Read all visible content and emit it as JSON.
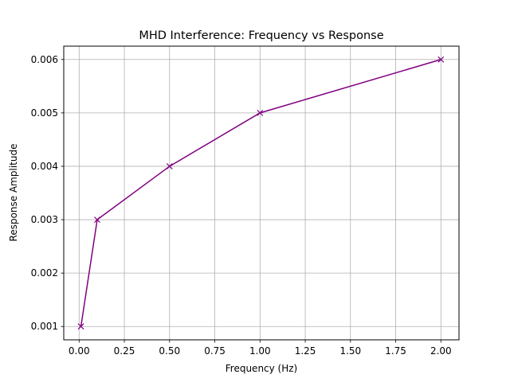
{
  "chart_data": {
    "type": "line",
    "title": "MHD Interference: Frequency vs Response",
    "xlabel": "Frequency (Hz)",
    "ylabel": "Response Amplitude",
    "xlim": [
      -0.085,
      2.1
    ],
    "ylim": [
      0.00075,
      0.00625
    ],
    "x_ticks": [
      0.0,
      0.25,
      0.5,
      0.75,
      1.0,
      1.25,
      1.5,
      1.75,
      2.0
    ],
    "x_tick_labels": [
      "0.00",
      "0.25",
      "0.50",
      "0.75",
      "1.00",
      "1.25",
      "1.50",
      "1.75",
      "2.00"
    ],
    "y_ticks": [
      0.001,
      0.002,
      0.003,
      0.004,
      0.005,
      0.006
    ],
    "y_tick_labels": [
      "0.001",
      "0.002",
      "0.003",
      "0.004",
      "0.005",
      "0.006"
    ],
    "grid": true,
    "series": [
      {
        "x": [
          0.01,
          0.1,
          0.5,
          1.0,
          2.0
        ],
        "y": [
          0.001,
          0.003,
          0.004,
          0.005,
          0.006
        ],
        "color": "#800080",
        "marker": "x"
      }
    ]
  }
}
